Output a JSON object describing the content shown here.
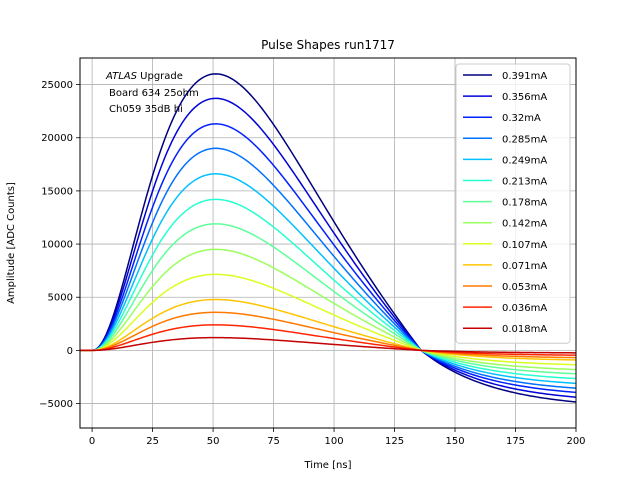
{
  "chart_data": {
    "type": "line",
    "title": "Pulse Shapes run1717",
    "xlabel": "Time [ns]",
    "ylabel": "Amplitude [ADC Counts]",
    "xlim": [
      -5,
      200
    ],
    "ylim": [
      -7300,
      27500
    ],
    "xticks": [
      0,
      25,
      50,
      75,
      100,
      125,
      150,
      175,
      200
    ],
    "yticks": [
      -5000,
      0,
      5000,
      10000,
      15000,
      20000,
      25000
    ],
    "grid": true,
    "legend_position": "upper right",
    "annotation": {
      "italic": "ATLAS",
      "line1_rest": " Upgrade",
      "line2": "Board 634 25ohm",
      "line3": "Ch059 35dB hi"
    },
    "series": [
      {
        "name": "0.391mA",
        "color": "#00007f",
        "peak": 26000,
        "undershoot": -4850
      },
      {
        "name": "0.356mA",
        "color": "#0000d8",
        "peak": 23700,
        "undershoot": -4400
      },
      {
        "name": "0.32mA",
        "color": "#0020ff",
        "peak": 21300,
        "undershoot": -3950
      },
      {
        "name": "0.285mA",
        "color": "#0070ff",
        "peak": 19000,
        "undershoot": -3550
      },
      {
        "name": "0.249mA",
        "color": "#00c0ff",
        "peak": 16600,
        "undershoot": -3100
      },
      {
        "name": "0.213mA",
        "color": "#26ffd0",
        "peak": 14200,
        "undershoot": -2650
      },
      {
        "name": "0.178mA",
        "color": "#5dff99",
        "peak": 11900,
        "undershoot": -2200
      },
      {
        "name": "0.142mA",
        "color": "#9aff5d",
        "peak": 9500,
        "undershoot": -1800
      },
      {
        "name": "0.107mA",
        "color": "#d8ff1f",
        "peak": 7150,
        "undershoot": -1350
      },
      {
        "name": "0.071mA",
        "color": "#ffc400",
        "peak": 4780,
        "undershoot": -900
      },
      {
        "name": "0.053mA",
        "color": "#ff7800",
        "peak": 3580,
        "undershoot": -680
      },
      {
        "name": "0.036mA",
        "color": "#ff2500",
        "peak": 2400,
        "undershoot": -450
      },
      {
        "name": "0.018mA",
        "color": "#c40000",
        "peak": 1200,
        "undershoot": -230
      }
    ]
  }
}
